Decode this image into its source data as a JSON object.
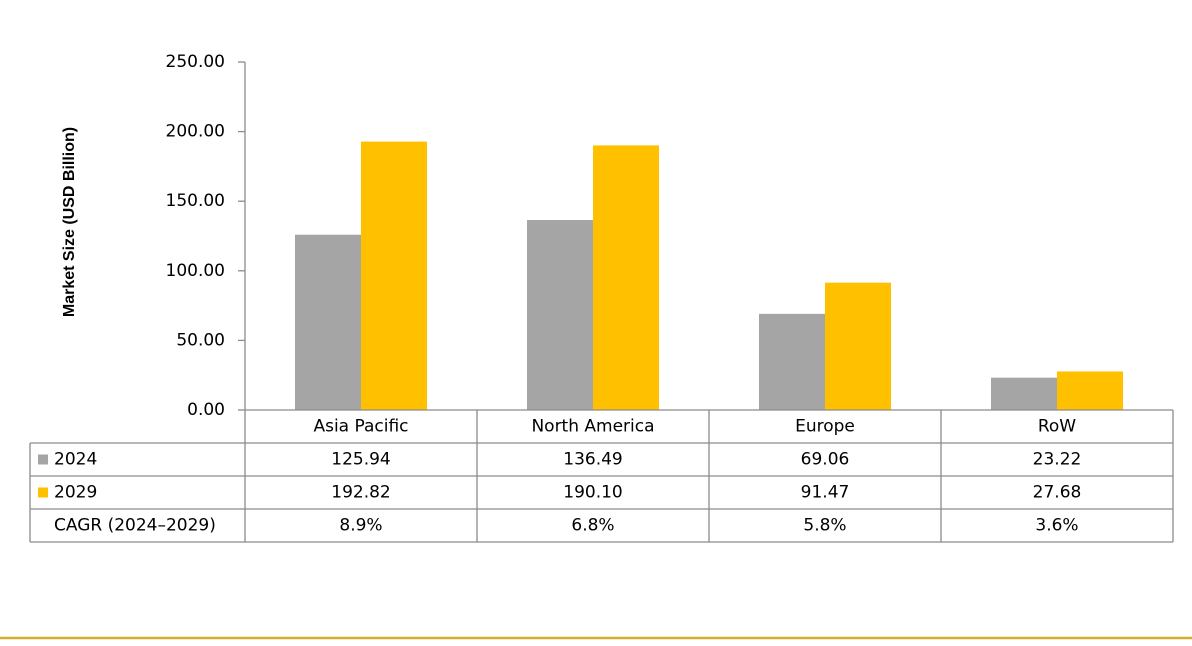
{
  "chart_data": {
    "type": "bar",
    "y_label": "Market Size (USD Billion)",
    "categories": [
      "Asia Pacific",
      "North America",
      "Europe",
      "RoW"
    ],
    "series": [
      {
        "name": "2024",
        "color": "#a5a5a5",
        "values": [
          125.94,
          136.49,
          69.06,
          23.22
        ],
        "value_labels": [
          "125.94",
          "136.49",
          "69.06",
          "23.22"
        ]
      },
      {
        "name": "2029",
        "color": "#ffc000",
        "values": [
          192.82,
          190.1,
          91.47,
          27.68
        ],
        "value_labels": [
          "192.82",
          "190.10",
          "91.47",
          "27.68"
        ]
      }
    ],
    "cagr": {
      "name": "CAGR (2024–2029)",
      "values": [
        8.9,
        6.8,
        5.8,
        3.6
      ],
      "value_labels": [
        "8.9%",
        "6.8%",
        "5.8%",
        "3.6%"
      ]
    },
    "ylim": [
      0,
      250
    ],
    "yticks": [
      {
        "value": 0,
        "label": "0.00"
      },
      {
        "value": 50,
        "label": "50.00"
      },
      {
        "value": 100,
        "label": "100.00"
      },
      {
        "value": 150,
        "label": "150.00"
      },
      {
        "value": 200,
        "label": "200.00"
      },
      {
        "value": 250,
        "label": "250.00"
      }
    ],
    "grid": false
  }
}
